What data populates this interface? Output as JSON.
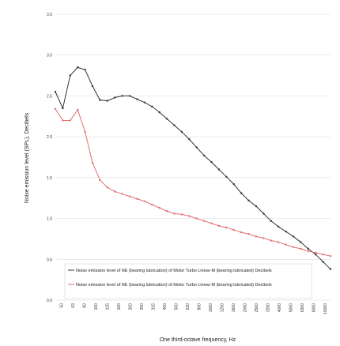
{
  "chart_data": {
    "type": "line",
    "xlabel": "One third-octave frequency, Hz",
    "ylabel": "Noise emission level (SPL), Decibels",
    "x_ticks": [
      "50",
      "63",
      "80",
      "100",
      "125",
      "160",
      "200",
      "250",
      "315",
      "400",
      "500",
      "630",
      "800",
      "1000",
      "1250",
      "1600",
      "2000",
      "2500",
      "3150",
      "4000",
      "5000",
      "6300",
      "8000",
      "10000"
    ],
    "y_ticks": [
      "0.0",
      "0.5",
      "1.0",
      "1.5",
      "2.0",
      "2.5",
      "3.0",
      "3.5"
    ],
    "ylim": [
      0,
      3.5
    ],
    "grid": "horizontal",
    "legend_position": "bottom-inside",
    "series": [
      {
        "name": "Noise emission level of NE (bearing lubrication) of Motor Turbo Linear-M (bearing lubricated) Decibels",
        "color": "#333333",
        "x": [
          1,
          2,
          3,
          4,
          5,
          6,
          7,
          8,
          9,
          10,
          11,
          12,
          13,
          14,
          15,
          16,
          17,
          18,
          19,
          20,
          21,
          22,
          23,
          24,
          25,
          26,
          27,
          28,
          29,
          30,
          31,
          32,
          33,
          34,
          35,
          36,
          37,
          38
        ],
        "values": [
          2.55,
          2.35,
          2.75,
          2.85,
          2.82,
          2.62,
          2.45,
          2.44,
          2.48,
          2.5,
          2.5,
          2.46,
          2.42,
          2.37,
          2.3,
          2.22,
          2.14,
          2.06,
          1.97,
          1.87,
          1.77,
          1.69,
          1.6,
          1.51,
          1.42,
          1.31,
          1.22,
          1.15,
          1.06,
          0.97,
          0.9,
          0.84,
          0.78,
          0.71,
          0.63,
          0.56,
          0.47,
          0.38
        ]
      },
      {
        "name": "Noise emission level of NE (bearing lubrication) of Motor Turbo Linear-M (bearing lubricated) Decibels",
        "color": "#e07070",
        "x": [
          1,
          2,
          3,
          4,
          5,
          6,
          7,
          8,
          9,
          10,
          11,
          12,
          13,
          14,
          15,
          16,
          17,
          18,
          19,
          20,
          21,
          22,
          23,
          24,
          25,
          26,
          27,
          28,
          29,
          30,
          31,
          32,
          33,
          34,
          35,
          36,
          37,
          38
        ],
        "values": [
          2.34,
          2.2,
          2.2,
          2.33,
          2.06,
          1.68,
          1.47,
          1.38,
          1.33,
          1.3,
          1.27,
          1.24,
          1.21,
          1.17,
          1.13,
          1.09,
          1.06,
          1.05,
          1.03,
          1.0,
          0.97,
          0.94,
          0.91,
          0.89,
          0.86,
          0.83,
          0.81,
          0.78,
          0.76,
          0.73,
          0.71,
          0.68,
          0.65,
          0.63,
          0.6,
          0.58,
          0.56,
          0.54
        ]
      }
    ]
  }
}
